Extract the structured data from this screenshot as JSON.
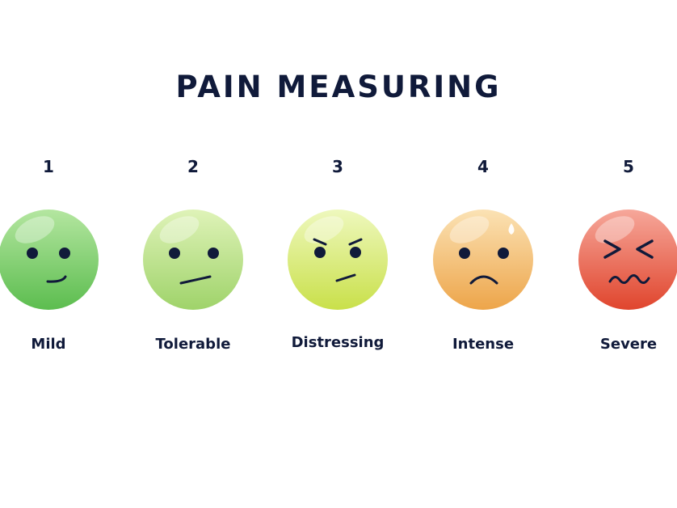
{
  "title": "PAIN MEASURING",
  "levels": [
    {
      "number": "1",
      "label": "Mild",
      "icon": "mild-face-icon",
      "color_top": "#b4e6a0",
      "color_bottom": "#5cbd4f"
    },
    {
      "number": "2",
      "label": "Tolerable",
      "icon": "tolerable-face-icon",
      "color_top": "#dff3b8",
      "color_bottom": "#9fd36a"
    },
    {
      "number": "3",
      "label": "Distressing",
      "icon": "distressing-face-icon",
      "color_top": "#eef8bd",
      "color_bottom": "#c9e04a"
    },
    {
      "number": "4",
      "label": "Intense",
      "icon": "intense-face-icon",
      "color_top": "#fbe2b4",
      "color_bottom": "#eda54a"
    },
    {
      "number": "5",
      "label": "Severe",
      "icon": "severe-face-icon",
      "color_top": "#f6a79a",
      "color_bottom": "#e0452d"
    }
  ]
}
